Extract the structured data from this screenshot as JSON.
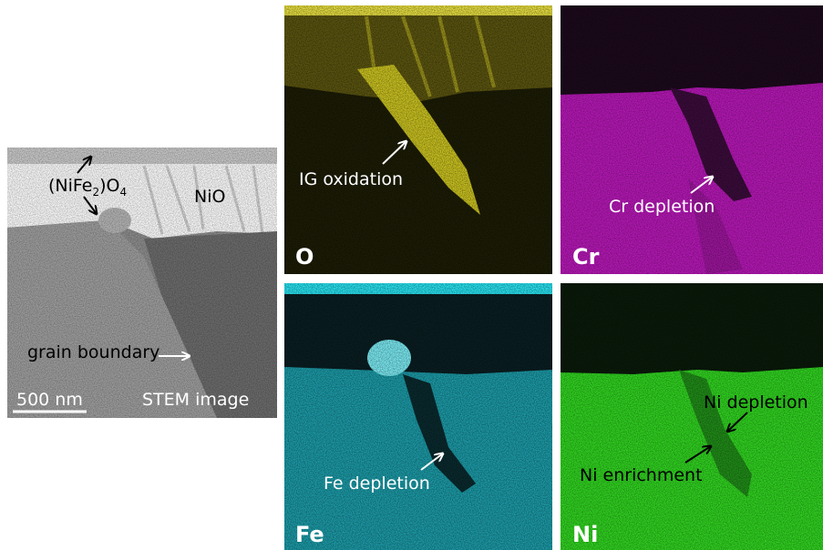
{
  "stem": {
    "formula": [
      "(NiFe",
      "2",
      ")O",
      "4"
    ],
    "phase": "NiO",
    "boundary": "grain boundary",
    "scale": "500 nm",
    "caption": "STEM image"
  },
  "maps": [
    {
      "element": "O",
      "notes": [
        "IG oxidation"
      ]
    },
    {
      "element": "Cr",
      "notes": [
        "Cr depletion"
      ]
    },
    {
      "element": "Fe",
      "notes": [
        "Fe depletion"
      ]
    },
    {
      "element": "Ni",
      "notes": [
        "Ni depletion",
        "Ni enrichment"
      ]
    }
  ]
}
